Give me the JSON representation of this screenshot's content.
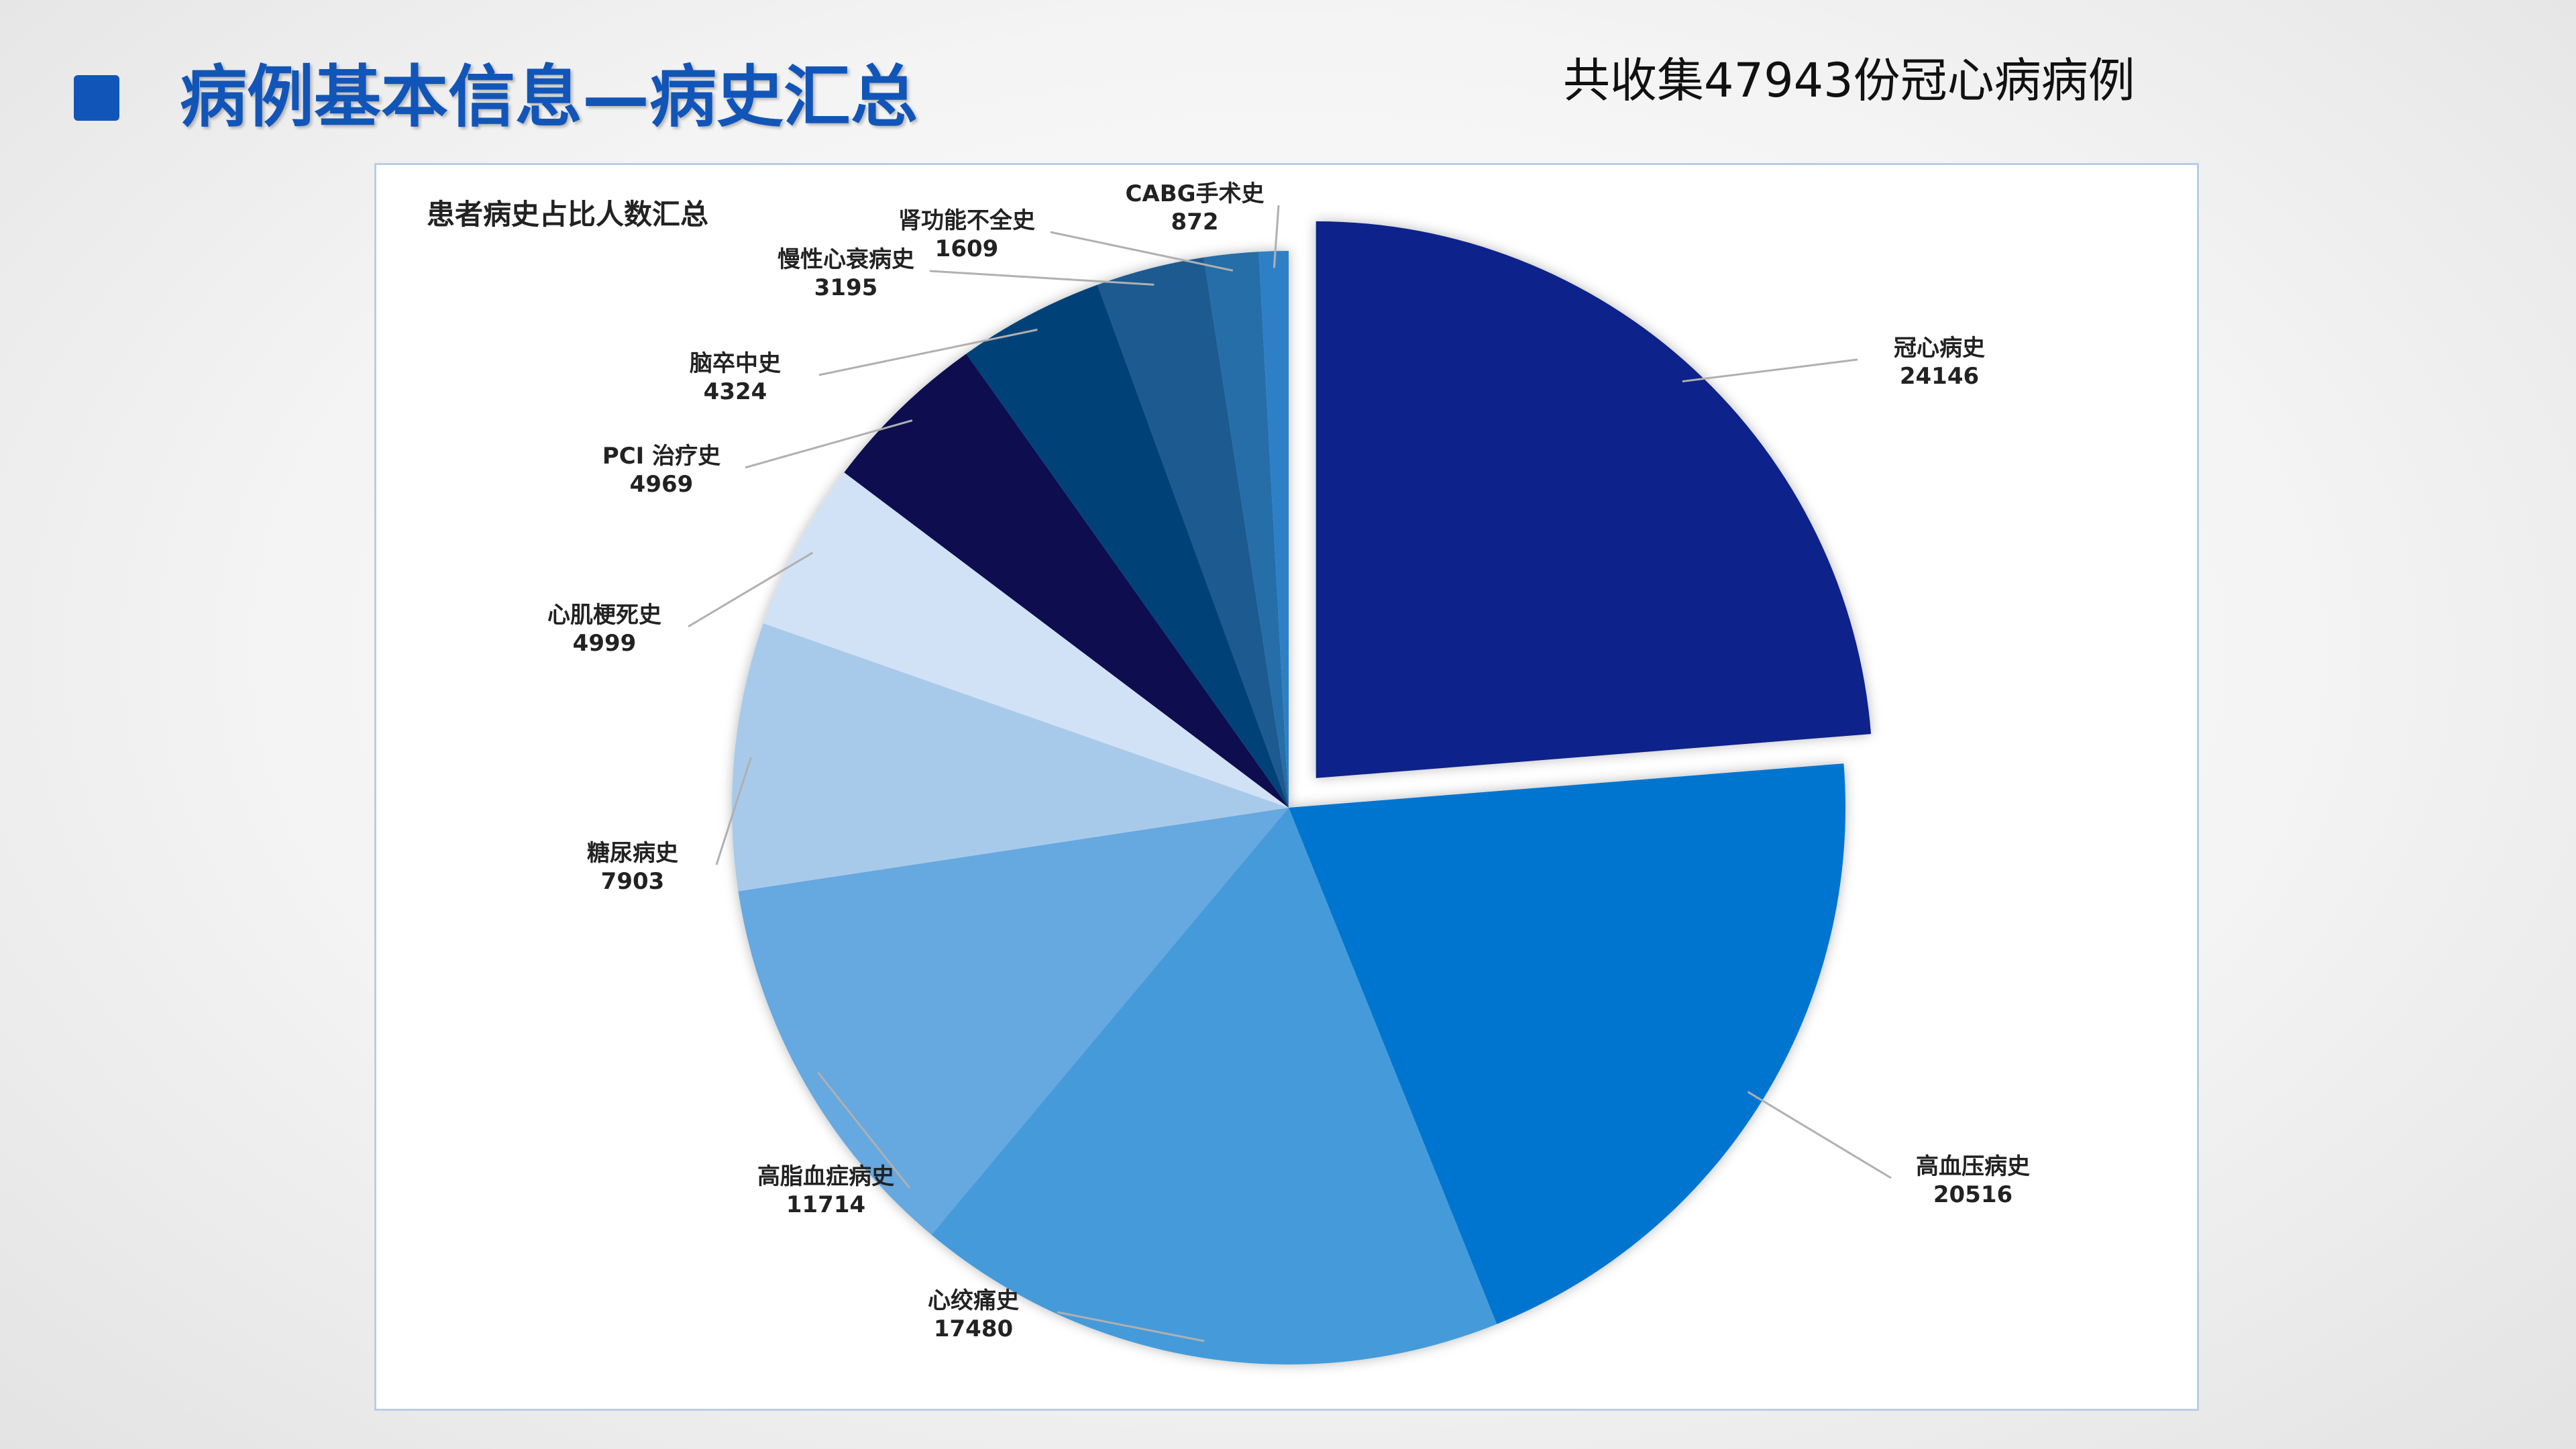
{
  "slide": {
    "title": "病例基本信息—病史汇总",
    "subtitle": "共收集47943份冠心病病例"
  },
  "chart_data": {
    "type": "pie",
    "title": "患者病史占比人数汇总",
    "exploded": "冠心病史",
    "slices": [
      {
        "name": "冠心病史",
        "value": 24146,
        "color": "#10208a"
      },
      {
        "name": "高血压病史",
        "value": 20516,
        "color": "#0275d0"
      },
      {
        "name": "心绞痛史",
        "value": 17480,
        "color": "#449bda"
      },
      {
        "name": "高脂血症病史",
        "value": 11714,
        "color": "#66a8e0"
      },
      {
        "name": "糖尿病史",
        "value": 7903,
        "color": "#a8caea"
      },
      {
        "name": "心肌梗死史",
        "value": 4999,
        "color": "#d2e2f6"
      },
      {
        "name": "PCI 治疗史",
        "value": 4969,
        "color": "#0b1150"
      },
      {
        "name": "脑卒中史",
        "value": 4324,
        "color": "#044378"
      },
      {
        "name": "慢性心衰病史",
        "value": 3195,
        "color": "#1f5a90"
      },
      {
        "name": "肾功能不全史",
        "value": 1609,
        "color": "#256ea8"
      },
      {
        "name": "CABG手术史",
        "value": 872,
        "color": "#2f80c6"
      }
    ]
  }
}
